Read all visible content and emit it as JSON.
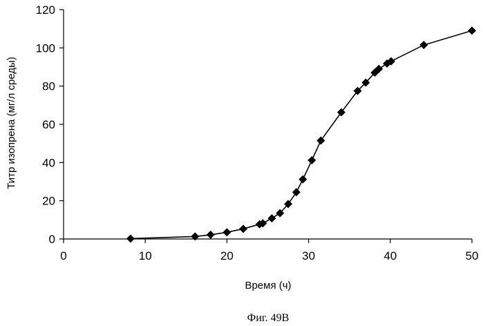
{
  "chart_data": {
    "type": "line",
    "title": "",
    "xlabel": "Время (ч)",
    "ylabel": "Титр изопрена (мг/л среды)",
    "xlim": [
      0,
      50
    ],
    "ylim": [
      0,
      120
    ],
    "xticks": [
      0,
      10,
      20,
      30,
      40,
      50
    ],
    "yticks": [
      0,
      20,
      40,
      60,
      80,
      100,
      120
    ],
    "grid": false,
    "marker": "diamond",
    "line_color": "#000000",
    "series": [
      {
        "name": "Титр изопрена",
        "x": [
          8.2,
          16.1,
          18.0,
          20.0,
          22.0,
          24.0,
          24.4,
          25.5,
          26.5,
          27.5,
          28.5,
          29.3,
          30.4,
          31.5,
          34.0,
          36.0,
          37.0,
          38.1,
          38.6,
          39.6,
          40.1,
          44.1,
          50.0
        ],
        "y": [
          0.2,
          1.3,
          2.2,
          3.5,
          5.3,
          7.7,
          8.2,
          10.8,
          13.5,
          18.3,
          24.5,
          31.2,
          41.2,
          51.5,
          66.3,
          77.5,
          81.8,
          87.0,
          89.0,
          91.8,
          93.0,
          101.5,
          109.0
        ]
      }
    ]
  },
  "caption": "Фиг. 49B"
}
